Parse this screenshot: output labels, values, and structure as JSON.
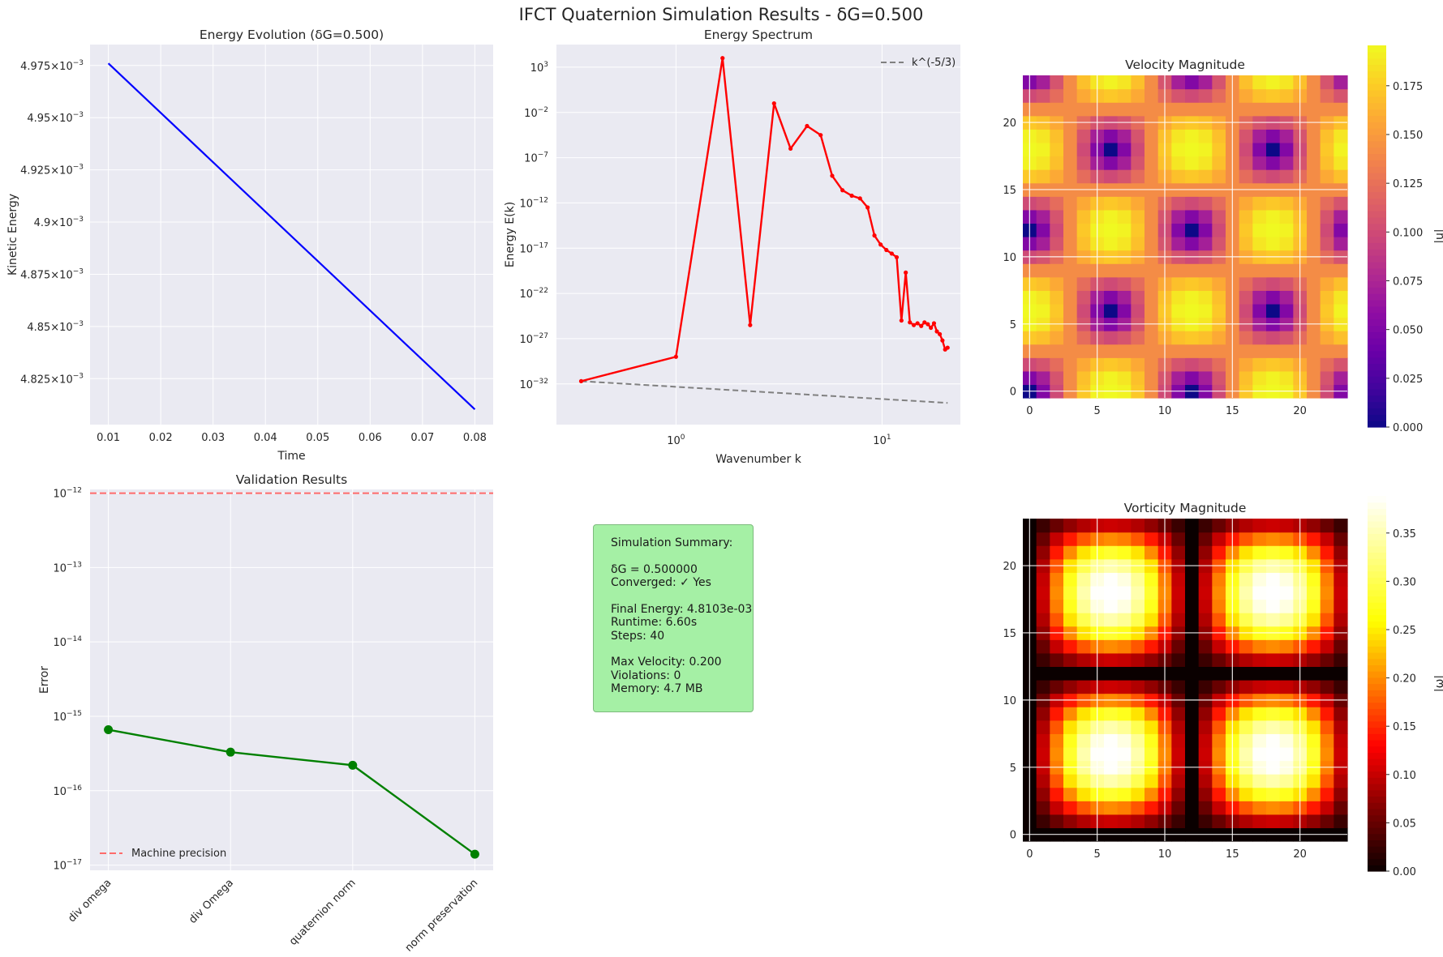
{
  "figure_title": "IFCT Quaternion Simulation Results - δG=0.500",
  "summary": {
    "heading": "Simulation Summary:",
    "delta_g": "δG = 0.500000",
    "converged": "Converged: ✓ Yes",
    "final_energy": "Final Energy: 4.8103e-03",
    "runtime": "Runtime: 6.60s",
    "steps": "Steps: 40",
    "max_velocity": "Max Velocity: 0.200",
    "violations": "Violations: 0",
    "memory": "Memory: 4.7 MB",
    "box_color": "#a5f0a5"
  },
  "chart_data": [
    {
      "id": "energy_evolution",
      "type": "line",
      "title": "Energy Evolution (δG=0.500)",
      "xlabel": "Time",
      "ylabel": "Kinetic Energy",
      "yscale": "linear",
      "xlim": [
        0.0065,
        0.0835
      ],
      "ylim": [
        0.004803,
        0.004985
      ],
      "xticks": [
        0.01,
        0.02,
        0.03,
        0.04,
        0.05,
        0.06,
        0.07,
        0.08
      ],
      "xtick_labels": [
        "0.01",
        "0.02",
        "0.03",
        "0.04",
        "0.05",
        "0.06",
        "0.07",
        "0.08"
      ],
      "yticks": [
        0.004825,
        0.00485,
        0.004875,
        0.0049,
        0.004925,
        0.00495,
        0.004975
      ],
      "ytick_labels": [
        {
          "mantissa": "4.825",
          "exp": "−3"
        },
        {
          "mantissa": "4.85",
          "exp": "−3"
        },
        {
          "mantissa": "4.875",
          "exp": "−3"
        },
        {
          "mantissa": "4.9",
          "exp": "−3"
        },
        {
          "mantissa": "4.925",
          "exp": "−3"
        },
        {
          "mantissa": "4.95",
          "exp": "−3"
        },
        {
          "mantissa": "4.975",
          "exp": "−3"
        }
      ],
      "series": [
        {
          "color": "#0000ff",
          "x": [
            0.01,
            0.08
          ],
          "y": [
            0.004976,
            0.0048103
          ]
        }
      ]
    },
    {
      "id": "energy_spectrum",
      "type": "line",
      "title": "Energy Spectrum",
      "xlabel": "Wavenumber k",
      "ylabel": "Energy E(k)",
      "xscale": "log",
      "yscale": "log",
      "xlim_log10": [
        -0.58,
        1.38
      ],
      "ylim_log10": [
        -36.5,
        5.5
      ],
      "xticks_log10": [
        0,
        1
      ],
      "xtick_labels": [
        {
          "base": "10",
          "exp": "0"
        },
        {
          "base": "10",
          "exp": "1"
        }
      ],
      "yticks_log10": [
        3,
        -2,
        -7,
        -12,
        -17,
        -22,
        -27,
        -32
      ],
      "ytick_labels": [
        {
          "base": "10",
          "exp": "3"
        },
        {
          "base": "10",
          "exp": "−2"
        },
        {
          "base": "10",
          "exp": "−7"
        },
        {
          "base": "10",
          "exp": "−12"
        },
        {
          "base": "10",
          "exp": "−17"
        },
        {
          "base": "10",
          "exp": "−22"
        },
        {
          "base": "10",
          "exp": "−27"
        },
        {
          "base": "10",
          "exp": "−32"
        }
      ],
      "legend": {
        "label": "k^(-5/3)",
        "placement": "upper-right"
      },
      "series": [
        {
          "color": "#ff0000",
          "log10k": [
            -0.46,
            0.0,
            0.226,
            0.36,
            0.476,
            0.556,
            0.636,
            0.702,
            0.758,
            0.808,
            0.853,
            0.893,
            0.93,
            0.963,
            0.993,
            1.021,
            1.047,
            1.071,
            1.094,
            1.115,
            1.135,
            1.154,
            1.172,
            1.19,
            1.206,
            1.222,
            1.237,
            1.252,
            1.266,
            1.28,
            1.293,
            1.306,
            1.318
          ],
          "log10E": [
            -31.7,
            -29.0,
            4.0,
            -25.5,
            -1.0,
            -6.0,
            -3.5,
            -4.5,
            -9.0,
            -10.6,
            -11.2,
            -11.5,
            -12.5,
            -15.6,
            -16.6,
            -17.2,
            -17.6,
            -18.0,
            -25.0,
            -19.7,
            -25.2,
            -25.5,
            -25.3,
            -25.6,
            -25.2,
            -25.4,
            -25.8,
            -25.3,
            -26.2,
            -26.5,
            -27.2,
            -28.2,
            -28.0
          ]
        },
        {
          "color": "#808080",
          "dashed": true,
          "log10k": [
            -0.46,
            1.318
          ],
          "log10E": [
            -31.7,
            -34.1
          ]
        }
      ]
    },
    {
      "id": "velocity_magnitude",
      "type": "heatmap",
      "title": "Velocity Magnitude",
      "colorbar_label": "|u|",
      "colormap": "plasma",
      "vmin": 0.0,
      "vmax": 0.1957,
      "grid_size": 24,
      "formula": "0.2*sqrt(sin²(2πx/24)cos²(2πy/24)+cos²(2πx/24)sin²(2πy/24))",
      "ticks": [
        0,
        5,
        10,
        15,
        20
      ],
      "colorbar_ticks": [
        0.0,
        0.025,
        0.05,
        0.075,
        0.1,
        0.125,
        0.15,
        0.175
      ],
      "colorbar_tick_labels": [
        "0.000",
        "0.025",
        "0.050",
        "0.075",
        "0.100",
        "0.125",
        "0.150",
        "0.175"
      ]
    },
    {
      "id": "validation_results",
      "type": "line",
      "title": "Validation Results",
      "ylabel": "Error",
      "yscale": "log",
      "ylim_log10": [
        -17.07,
        -11.95
      ],
      "categories": [
        "div omega",
        "div Omega",
        "quaternion norm",
        "norm preservation"
      ],
      "yticks_log10": [
        -12,
        -13,
        -14,
        -15,
        -16,
        -17
      ],
      "ytick_labels": [
        {
          "base": "10",
          "exp": "−12"
        },
        {
          "base": "10",
          "exp": "−13"
        },
        {
          "base": "10",
          "exp": "−14"
        },
        {
          "base": "10",
          "exp": "−15"
        },
        {
          "base": "10",
          "exp": "−16"
        },
        {
          "base": "10",
          "exp": "−17"
        }
      ],
      "legend": {
        "label": "Machine precision",
        "placement": "lower-left"
      },
      "reference_line": {
        "value": 1e-12,
        "color": "#ff6b6b"
      },
      "series": [
        {
          "color": "#008000",
          "values": [
            6.6e-16,
            3.3e-16,
            2.2e-16,
            1.4e-17
          ]
        }
      ]
    },
    {
      "id": "vorticity_magnitude",
      "type": "heatmap",
      "title": "Vorticity Magnitude",
      "colorbar_label": "|ω|",
      "colormap": "hot",
      "vmin": 0.0,
      "vmax": 0.3884,
      "grid_size": 24,
      "formula": "0.4*|sin(πx/12)|*|sin(πy/12)|",
      "ticks": [
        0,
        5,
        10,
        15,
        20
      ],
      "colorbar_ticks": [
        0.0,
        0.05,
        0.1,
        0.15,
        0.2,
        0.25,
        0.3,
        0.35
      ],
      "colorbar_tick_labels": [
        "0.00",
        "0.05",
        "0.10",
        "0.15",
        "0.20",
        "0.25",
        "0.30",
        "0.35"
      ]
    }
  ]
}
